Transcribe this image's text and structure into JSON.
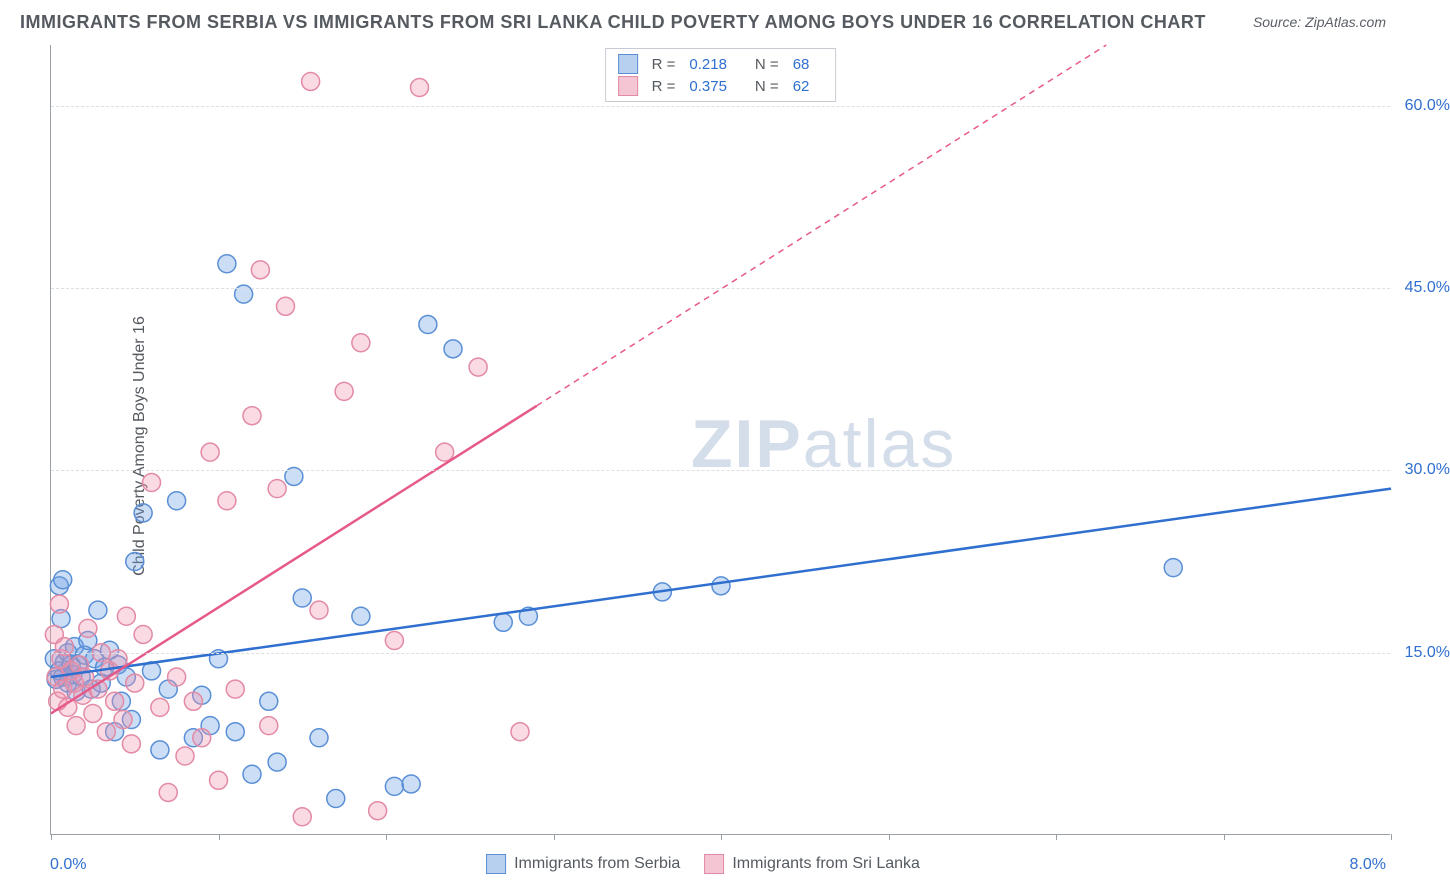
{
  "title": "IMMIGRANTS FROM SERBIA VS IMMIGRANTS FROM SRI LANKA CHILD POVERTY AMONG BOYS UNDER 16 CORRELATION CHART",
  "source": "Source: ZipAtlas.com",
  "ylabel": "Child Poverty Among Boys Under 16",
  "watermark_bold": "ZIP",
  "watermark_rest": "atlas",
  "chart": {
    "type": "scatter",
    "background_color": "#ffffff",
    "grid_color": "#dcdfe3",
    "axis_color": "#9aa0a8",
    "xlim": [
      0.0,
      8.0
    ],
    "ylim": [
      0.0,
      65.0
    ],
    "xtick_positions": [
      0,
      1,
      2,
      3,
      4,
      5,
      6,
      7,
      8
    ],
    "ytick_labels": [
      {
        "v": 15.0,
        "label": "15.0%"
      },
      {
        "v": 30.0,
        "label": "30.0%"
      },
      {
        "v": 45.0,
        "label": "45.0%"
      },
      {
        "v": 60.0,
        "label": "60.0%"
      }
    ],
    "xlim_left_label": "0.0%",
    "xlim_right_label": "8.0%",
    "marker_radius": 9,
    "marker_stroke_width": 1.5,
    "trend_line_width": 2.5,
    "trend_dash": "6,5",
    "series": [
      {
        "name": "Immigrants from Serbia",
        "fill": "rgba(110,160,230,0.35)",
        "stroke": "#5a8fd6",
        "swatch_fill": "#b8d0ef",
        "swatch_stroke": "#5a8fd6",
        "R": "0.218",
        "N": "68",
        "trend": {
          "x1": 0.0,
          "y1": 13.0,
          "x2": 8.0,
          "y2": 28.5,
          "color": "#2f6fd0",
          "dash_after_x": null
        },
        "points": [
          [
            0.02,
            14.5
          ],
          [
            0.03,
            12.8
          ],
          [
            0.05,
            13.5
          ],
          [
            0.05,
            20.5
          ],
          [
            0.06,
            17.8
          ],
          [
            0.07,
            21.0
          ],
          [
            0.07,
            13.0
          ],
          [
            0.08,
            14.2
          ],
          [
            0.1,
            12.5
          ],
          [
            0.1,
            15.0
          ],
          [
            0.12,
            14.0
          ],
          [
            0.13,
            13.2
          ],
          [
            0.14,
            15.5
          ],
          [
            0.15,
            11.8
          ],
          [
            0.16,
            14.0
          ],
          [
            0.18,
            13.0
          ],
          [
            0.2,
            14.8
          ],
          [
            0.22,
            16.0
          ],
          [
            0.24,
            12.0
          ],
          [
            0.26,
            14.5
          ],
          [
            0.28,
            18.5
          ],
          [
            0.3,
            12.5
          ],
          [
            0.32,
            13.8
          ],
          [
            0.35,
            15.2
          ],
          [
            0.38,
            8.5
          ],
          [
            0.4,
            14.0
          ],
          [
            0.42,
            11.0
          ],
          [
            0.45,
            13.0
          ],
          [
            0.48,
            9.5
          ],
          [
            0.5,
            22.5
          ],
          [
            0.55,
            26.5
          ],
          [
            0.6,
            13.5
          ],
          [
            0.65,
            7.0
          ],
          [
            0.7,
            12.0
          ],
          [
            0.75,
            27.5
          ],
          [
            0.85,
            8.0
          ],
          [
            0.9,
            11.5
          ],
          [
            0.95,
            9.0
          ],
          [
            1.0,
            14.5
          ],
          [
            1.05,
            47.0
          ],
          [
            1.1,
            8.5
          ],
          [
            1.15,
            44.5
          ],
          [
            1.2,
            5.0
          ],
          [
            1.3,
            11.0
          ],
          [
            1.35,
            6.0
          ],
          [
            1.45,
            29.5
          ],
          [
            1.5,
            19.5
          ],
          [
            1.6,
            8.0
          ],
          [
            1.7,
            3.0
          ],
          [
            1.85,
            18.0
          ],
          [
            2.05,
            4.0
          ],
          [
            2.15,
            4.2
          ],
          [
            2.25,
            42.0
          ],
          [
            2.4,
            40.0
          ],
          [
            2.7,
            17.5
          ],
          [
            2.85,
            18.0
          ],
          [
            3.65,
            20.0
          ],
          [
            4.0,
            20.5
          ],
          [
            6.7,
            22.0
          ]
        ]
      },
      {
        "name": "Immigrants from Sri Lanka",
        "fill": "rgba(240,150,175,0.35)",
        "stroke": "#e38aa5",
        "swatch_fill": "#f4c6d3",
        "swatch_stroke": "#e38aa5",
        "R": "0.375",
        "N": "62",
        "trend": {
          "x1": 0.0,
          "y1": 10.0,
          "x2": 6.3,
          "y2": 65.0,
          "color": "#e65a8a",
          "dash_after_x": 2.9
        },
        "points": [
          [
            0.02,
            16.5
          ],
          [
            0.03,
            13.0
          ],
          [
            0.04,
            11.0
          ],
          [
            0.05,
            19.0
          ],
          [
            0.06,
            14.5
          ],
          [
            0.07,
            12.0
          ],
          [
            0.08,
            15.5
          ],
          [
            0.1,
            10.5
          ],
          [
            0.12,
            13.5
          ],
          [
            0.14,
            12.5
          ],
          [
            0.15,
            9.0
          ],
          [
            0.17,
            14.0
          ],
          [
            0.19,
            11.5
          ],
          [
            0.2,
            13.0
          ],
          [
            0.22,
            17.0
          ],
          [
            0.25,
            10.0
          ],
          [
            0.28,
            12.0
          ],
          [
            0.3,
            15.0
          ],
          [
            0.33,
            8.5
          ],
          [
            0.35,
            13.5
          ],
          [
            0.38,
            11.0
          ],
          [
            0.4,
            14.5
          ],
          [
            0.43,
            9.5
          ],
          [
            0.45,
            18.0
          ],
          [
            0.48,
            7.5
          ],
          [
            0.5,
            12.5
          ],
          [
            0.55,
            16.5
          ],
          [
            0.6,
            29.0
          ],
          [
            0.65,
            10.5
          ],
          [
            0.7,
            3.5
          ],
          [
            0.75,
            13.0
          ],
          [
            0.8,
            6.5
          ],
          [
            0.85,
            11.0
          ],
          [
            0.9,
            8.0
          ],
          [
            0.95,
            31.5
          ],
          [
            1.0,
            4.5
          ],
          [
            1.05,
            27.5
          ],
          [
            1.1,
            12.0
          ],
          [
            1.2,
            34.5
          ],
          [
            1.25,
            46.5
          ],
          [
            1.3,
            9.0
          ],
          [
            1.35,
            28.5
          ],
          [
            1.4,
            43.5
          ],
          [
            1.5,
            1.5
          ],
          [
            1.55,
            62.0
          ],
          [
            1.6,
            18.5
          ],
          [
            1.75,
            36.5
          ],
          [
            1.85,
            40.5
          ],
          [
            1.95,
            2.0
          ],
          [
            2.05,
            16.0
          ],
          [
            2.2,
            61.5
          ],
          [
            2.35,
            31.5
          ],
          [
            2.55,
            38.5
          ],
          [
            2.8,
            8.5
          ]
        ]
      }
    ]
  },
  "legend_top_rows": [
    {
      "swatch_series": 0,
      "R_label": "R  =",
      "N_label": "N  ="
    },
    {
      "swatch_series": 1,
      "R_label": "R  =",
      "N_label": "N  ="
    }
  ]
}
